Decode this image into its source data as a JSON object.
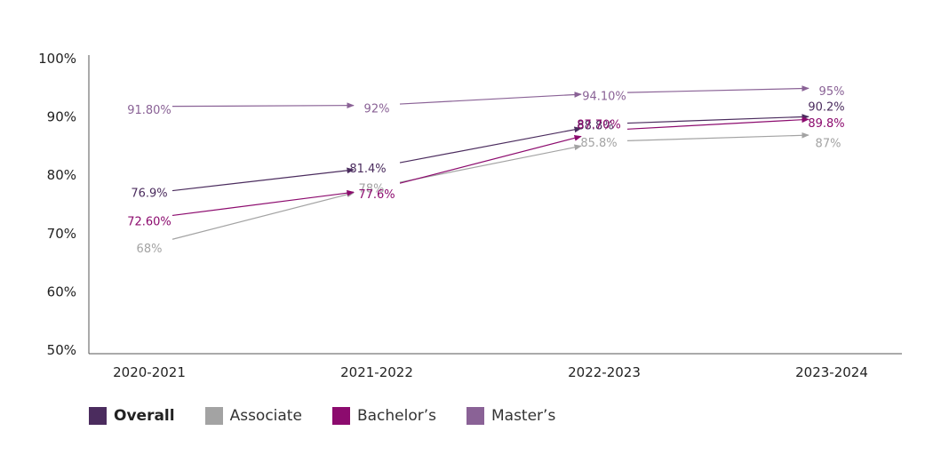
{
  "chart_data": {
    "type": "line",
    "categories": [
      "2020-2021",
      "2021-2022",
      "2022-2023",
      "2023-2024"
    ],
    "ylim": [
      50,
      100
    ],
    "yticks": [
      "100%",
      "90%",
      "80%",
      "70%",
      "60%",
      "50%"
    ],
    "ytick_values": [
      100,
      90,
      80,
      70,
      60,
      50
    ],
    "grid": false,
    "legend_position": "bottom-left",
    "series": [
      {
        "name": "Overall",
        "color": "#4b2c5e",
        "values": [
          76.9,
          81.4,
          88.8,
          90.2
        ],
        "labels": [
          "76.9%",
          "81.4%",
          "88.8%",
          "90.2%"
        ]
      },
      {
        "name": "Associate",
        "color": "#a3a3a3",
        "values": [
          68,
          78,
          85.8,
          87
        ],
        "labels": [
          "68%",
          "78%",
          "85.8%",
          "87%"
        ]
      },
      {
        "name": "Bachelor’s",
        "color": "#8c0b6e",
        "values": [
          72.6,
          77.6,
          87.7,
          89.8
        ],
        "labels": [
          "72.60%",
          "77.6%",
          "87.70%",
          "89.8%"
        ]
      },
      {
        "name": "Master’s",
        "color": "#8a6296",
        "values": [
          91.8,
          92,
          94.1,
          95
        ],
        "labels": [
          "91.80%",
          "92%",
          "94.10%",
          "95%"
        ]
      }
    ]
  }
}
